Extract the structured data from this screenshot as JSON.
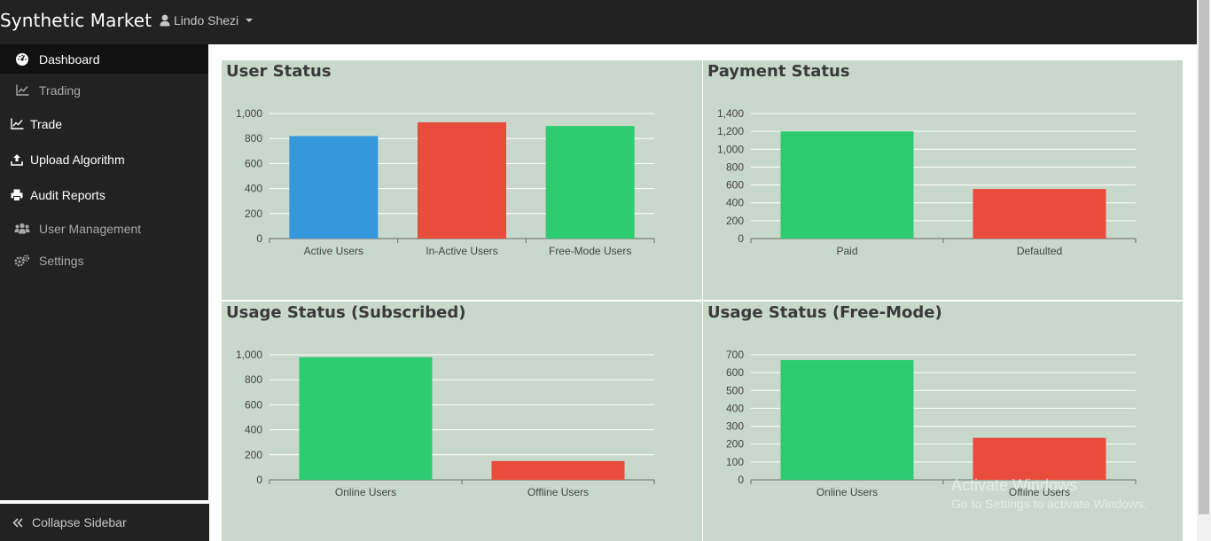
{
  "app": {
    "brand": "Synthetic Market",
    "user_name": "Lindo Shezi",
    "user_icon": "user-icon",
    "colors": {
      "topbar": "#222222",
      "sidebar": "#222222",
      "panel_bg": "#c8d8cb",
      "blue": "#3498db",
      "red": "#e74c3c",
      "green": "#2ecc71"
    }
  },
  "sidebar": {
    "items": [
      {
        "label": "Dashboard",
        "icon": "dashboard-gauge-icon",
        "active": true
      },
      {
        "label": "Trading",
        "icon": "line-chart-icon"
      },
      {
        "label": "Trade",
        "icon": "line-chart-icon"
      },
      {
        "label": "Upload Algorithm",
        "icon": "upload-icon"
      },
      {
        "label": "Audit Reports",
        "icon": "print-icon"
      },
      {
        "label": "User Management",
        "icon": "users-icon"
      },
      {
        "label": "Settings",
        "icon": "cogs-icon"
      }
    ],
    "collapse_label": "Collapse Sidebar",
    "collapse_icon": "double-chevron-left-icon"
  },
  "panels": {
    "user_status": {
      "title": "User Status"
    },
    "payment_status": {
      "title": "Payment Status"
    },
    "usage_subscribed": {
      "title": "Usage Status (Subscribed)"
    },
    "usage_free": {
      "title": "Usage Status (Free-Mode)"
    }
  },
  "watermark": {
    "line1": "Activate Windows",
    "line2": "Go to Settings to activate Windows."
  },
  "chart_data": [
    {
      "type": "bar",
      "title": "User Status",
      "categories": [
        "Active Users",
        "In-Active Users",
        "Free-Mode Users"
      ],
      "values": [
        820,
        930,
        900
      ],
      "colors": [
        "#3498db",
        "#e74c3c",
        "#2ecc71"
      ],
      "ylim": [
        0,
        1000
      ],
      "yticks": [
        0,
        200,
        400,
        600,
        800,
        1000
      ],
      "ytick_labels": [
        "0",
        "200",
        "400",
        "600",
        "800",
        "1,000"
      ],
      "grid": true
    },
    {
      "type": "bar",
      "title": "Payment Status",
      "categories": [
        "Paid",
        "Defaulted"
      ],
      "values": [
        1200,
        555
      ],
      "colors": [
        "#2ecc71",
        "#e74c3c"
      ],
      "ylim": [
        0,
        1400
      ],
      "yticks": [
        0,
        200,
        400,
        600,
        800,
        1000,
        1200,
        1400
      ],
      "ytick_labels": [
        "0",
        "200",
        "400",
        "600",
        "800",
        "1,000",
        "1,200",
        "1,400"
      ],
      "grid": true
    },
    {
      "type": "bar",
      "title": "Usage Status (Subscribed)",
      "categories": [
        "Online Users",
        "Offline Users"
      ],
      "values": [
        980,
        150
      ],
      "colors": [
        "#2ecc71",
        "#e74c3c"
      ],
      "ylim": [
        0,
        1000
      ],
      "yticks": [
        0,
        200,
        400,
        600,
        800,
        1000
      ],
      "ytick_labels": [
        "0",
        "200",
        "400",
        "600",
        "800",
        "1,000"
      ],
      "grid": true
    },
    {
      "type": "bar",
      "title": "Usage Status (Free-Mode)",
      "categories": [
        "Online Users",
        "Offline Users"
      ],
      "values": [
        670,
        235
      ],
      "colors": [
        "#2ecc71",
        "#e74c3c"
      ],
      "ylim": [
        0,
        700
      ],
      "yticks": [
        0,
        100,
        200,
        300,
        400,
        500,
        600,
        700
      ],
      "ytick_labels": [
        "0",
        "100",
        "200",
        "300",
        "400",
        "500",
        "600",
        "700"
      ],
      "grid": true
    }
  ]
}
